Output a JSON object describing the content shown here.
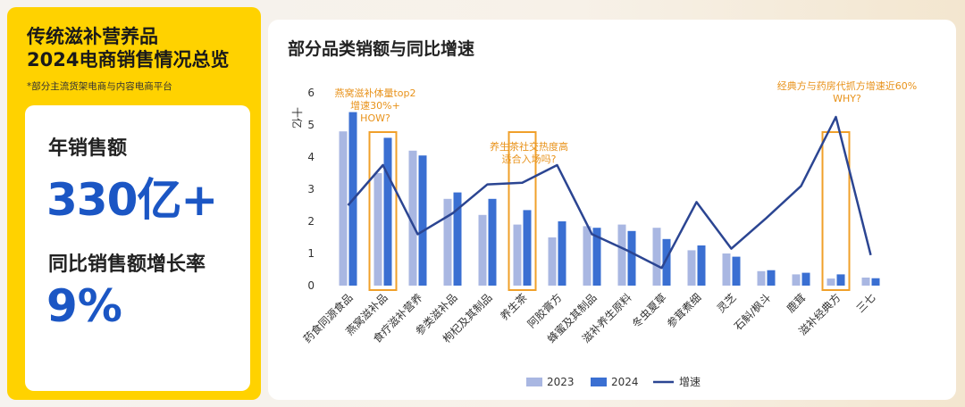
{
  "left": {
    "title_line1": "传统滋补营养品",
    "title_line2": "2024电商销售情况总览",
    "note": "*部分主流货架电商与内容电商平台",
    "sales_label": "年销售额",
    "sales_value": "330亿+",
    "growth_label": "同比销售额增长率",
    "growth_value": "9%"
  },
  "colors": {
    "bar_2023": "#a9b7e2",
    "bar_2024": "#3a6fd2",
    "line": "#2b4592",
    "highlight": "#f0a02a",
    "annotation": "#e8921a"
  },
  "chart_data": {
    "type": "bar",
    "title": "部分品类销额与同比增速",
    "ylabel": "十亿",
    "ylim": [
      0,
      6
    ],
    "yticks": [
      "0",
      "1",
      "2",
      "3",
      "4",
      "5",
      "6"
    ],
    "categories": [
      "药食同源食品",
      "燕窝滋补品",
      "食疗滋补营养",
      "参类滋补品",
      "枸杞及其制品",
      "养生茶",
      "阿胶膏方",
      "蜂蜜及其制品",
      "滋补养生原料",
      "冬虫夏草",
      "参茸煮细",
      "灵芝",
      "石斛/枫斗",
      "鹿茸",
      "滋补经典方",
      "三七"
    ],
    "series": [
      {
        "name": "2023",
        "type": "bar",
        "values": [
          4.8,
          3.5,
          4.2,
          2.7,
          2.2,
          1.9,
          1.5,
          1.85,
          1.9,
          1.8,
          1.1,
          1.0,
          0.45,
          0.35,
          0.22,
          0.25
        ]
      },
      {
        "name": "2024",
        "type": "bar",
        "values": [
          5.4,
          4.6,
          4.05,
          2.9,
          2.7,
          2.35,
          2.0,
          1.8,
          1.7,
          1.45,
          1.25,
          0.9,
          0.48,
          0.4,
          0.35,
          0.23
        ]
      },
      {
        "name": "增速",
        "type": "line",
        "values": [
          2.5,
          3.75,
          1.6,
          2.25,
          3.15,
          3.2,
          3.75,
          1.6,
          1.1,
          0.55,
          2.6,
          1.15,
          2.1,
          3.1,
          5.25,
          0.95
        ]
      }
    ],
    "highlights": [
      1,
      5,
      14
    ],
    "annotations": [
      {
        "index": 1,
        "lines": [
          "燕窝滋补体量top2",
          "增速30%+",
          "HOW?"
        ]
      },
      {
        "index": 5,
        "lines": [
          "养生茶社交热度高",
          "适合入场吗?"
        ]
      },
      {
        "index": 14,
        "lines": [
          "经典方与药房代抓方增速近60%",
          "WHY?"
        ]
      }
    ],
    "legend": [
      "2023",
      "2024",
      "增速"
    ]
  }
}
